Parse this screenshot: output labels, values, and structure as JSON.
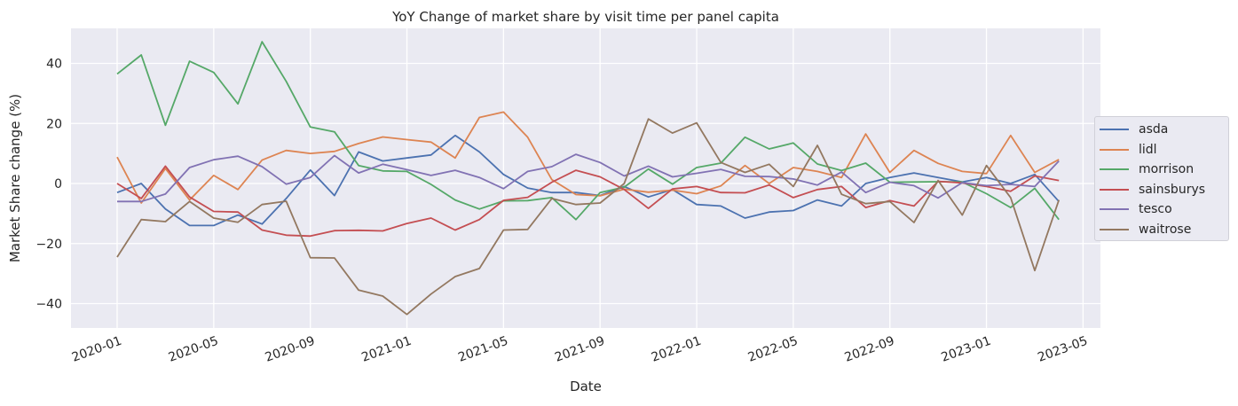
{
  "chart_data": {
    "type": "line",
    "title": "YoY Change of market share by visit time per panel capita",
    "xlabel": "Date",
    "ylabel": "Market Share change (%)",
    "ylim": [
      -48,
      51
    ],
    "yticks": [
      -40,
      -20,
      0,
      20,
      40
    ],
    "ytick_labels": [
      "−40",
      "−20",
      "0",
      "20",
      "40"
    ],
    "xtick_labels": [
      "2020-01",
      "2020-05",
      "2020-09",
      "2021-01",
      "2021-05",
      "2021-09",
      "2022-01",
      "2022-05",
      "2022-09",
      "2023-01",
      "2023-05"
    ],
    "grid": true,
    "legend_position": "right, outside",
    "x": [
      "2020-01",
      "2020-02",
      "2020-03",
      "2020-04",
      "2020-05",
      "2020-06",
      "2020-07",
      "2020-08",
      "2020-09",
      "2020-10",
      "2020-11",
      "2020-12",
      "2021-01",
      "2021-02",
      "2021-03",
      "2021-04",
      "2021-05",
      "2021-06",
      "2021-07",
      "2021-08",
      "2021-09",
      "2021-10",
      "2021-11",
      "2021-12",
      "2022-01",
      "2022-02",
      "2022-03",
      "2022-04",
      "2022-05",
      "2022-06",
      "2022-07",
      "2022-08",
      "2022-09",
      "2022-10",
      "2022-11",
      "2022-12",
      "2023-01",
      "2023-02",
      "2023-03",
      "2023-04"
    ],
    "series": [
      {
        "name": "asda",
        "color": "#4c72b0",
        "values": [
          -3,
          0,
          -8.5,
          -14,
          -14,
          -10.5,
          -13.5,
          -5,
          4.5,
          -4,
          10.5,
          7.5,
          8.5,
          9.5,
          16,
          10.5,
          3,
          -1.5,
          -3,
          -3,
          -4,
          -1,
          -4.5,
          -2,
          -7,
          -7.5,
          -11.5,
          -9.5,
          -9,
          -5.5,
          -7.5,
          0,
          2,
          3.5,
          2,
          0.5,
          2,
          0,
          3,
          -6
        ]
      },
      {
        "name": "lidl",
        "color": "#dd8452",
        "values": [
          8.8,
          -6.5,
          5,
          -5.5,
          2.7,
          -2,
          7.8,
          11,
          10,
          10.7,
          13.3,
          15.5,
          14.6,
          13.8,
          8.5,
          22,
          23.8,
          15.4,
          1.3,
          -3.7,
          -4.1,
          -1.9,
          -2.9,
          -2.2,
          -3.4,
          -0.8,
          6,
          0,
          5.3,
          4,
          2,
          16.5,
          3.7,
          11,
          6.7,
          4,
          3.3,
          16,
          3.7,
          8
        ]
      },
      {
        "name": "morrison",
        "color": "#55a868",
        "values": [
          36.5,
          42.8,
          19.4,
          40.7,
          37,
          26.5,
          47.2,
          34,
          18.8,
          17.2,
          6,
          4.2,
          4,
          -0.3,
          -5.5,
          -8.5,
          -5.8,
          -5.7,
          -4.7,
          -12,
          -3,
          -1.2,
          4.8,
          -0.2,
          5.3,
          6.8,
          15.4,
          11.5,
          13.5,
          6.5,
          4.3,
          6.8,
          0.4,
          0.5,
          0.6,
          0.5,
          -3.4,
          -8,
          -1.6,
          -12
        ]
      },
      {
        "name": "sainsburys",
        "color": "#c44e52",
        "values": [
          0,
          -5,
          5.8,
          -4.5,
          -9.3,
          -9.5,
          -15.5,
          -17.2,
          -17.5,
          -15.7,
          -15.6,
          -15.8,
          -13.3,
          -11.5,
          -15.5,
          -12,
          -5.6,
          -4.6,
          0.4,
          4.4,
          2.2,
          -2,
          -8.3,
          -1.8,
          -1,
          -3,
          -3.1,
          -0.5,
          -4.7,
          -2,
          -1,
          -8,
          -5.7,
          -7.5,
          0.7,
          0.2,
          -1,
          -2.6,
          2.5,
          1
        ]
      },
      {
        "name": "tesco",
        "color": "#8172b3",
        "values": [
          -6,
          -6,
          -3.5,
          5.3,
          7.9,
          9.1,
          5.6,
          -0.2,
          2,
          9.3,
          3.5,
          6.4,
          4.6,
          2.7,
          4.4,
          2,
          -1.7,
          4,
          5.6,
          9.7,
          7,
          2.5,
          5.8,
          2.2,
          3.4,
          4.7,
          2.4,
          2.3,
          1.5,
          -0.5,
          3.8,
          -3,
          0.4,
          -0.7,
          -4.8,
          0.3,
          -0.7,
          -0.3,
          -1,
          7.5
        ]
      },
      {
        "name": "waitrose",
        "color": "#937860",
        "values": [
          -24.5,
          -12,
          -12.7,
          -6,
          -11.5,
          -12.9,
          -7,
          -5.9,
          -24.7,
          -24.8,
          -35.5,
          -37.5,
          -43.6,
          -36.8,
          -31,
          -28.3,
          -15.5,
          -15.3,
          -5,
          -7,
          -6.5,
          0,
          21.5,
          16.8,
          20.2,
          7,
          3.7,
          6.4,
          -1,
          12.7,
          -3.6,
          -6.7,
          -6,
          -13,
          1,
          -10.5,
          6,
          -4.7,
          -29,
          -5.5
        ]
      }
    ]
  },
  "style": {
    "plot_background": "#eaeaf2",
    "grid_color": "#ffffff",
    "text_color": "#262626"
  }
}
